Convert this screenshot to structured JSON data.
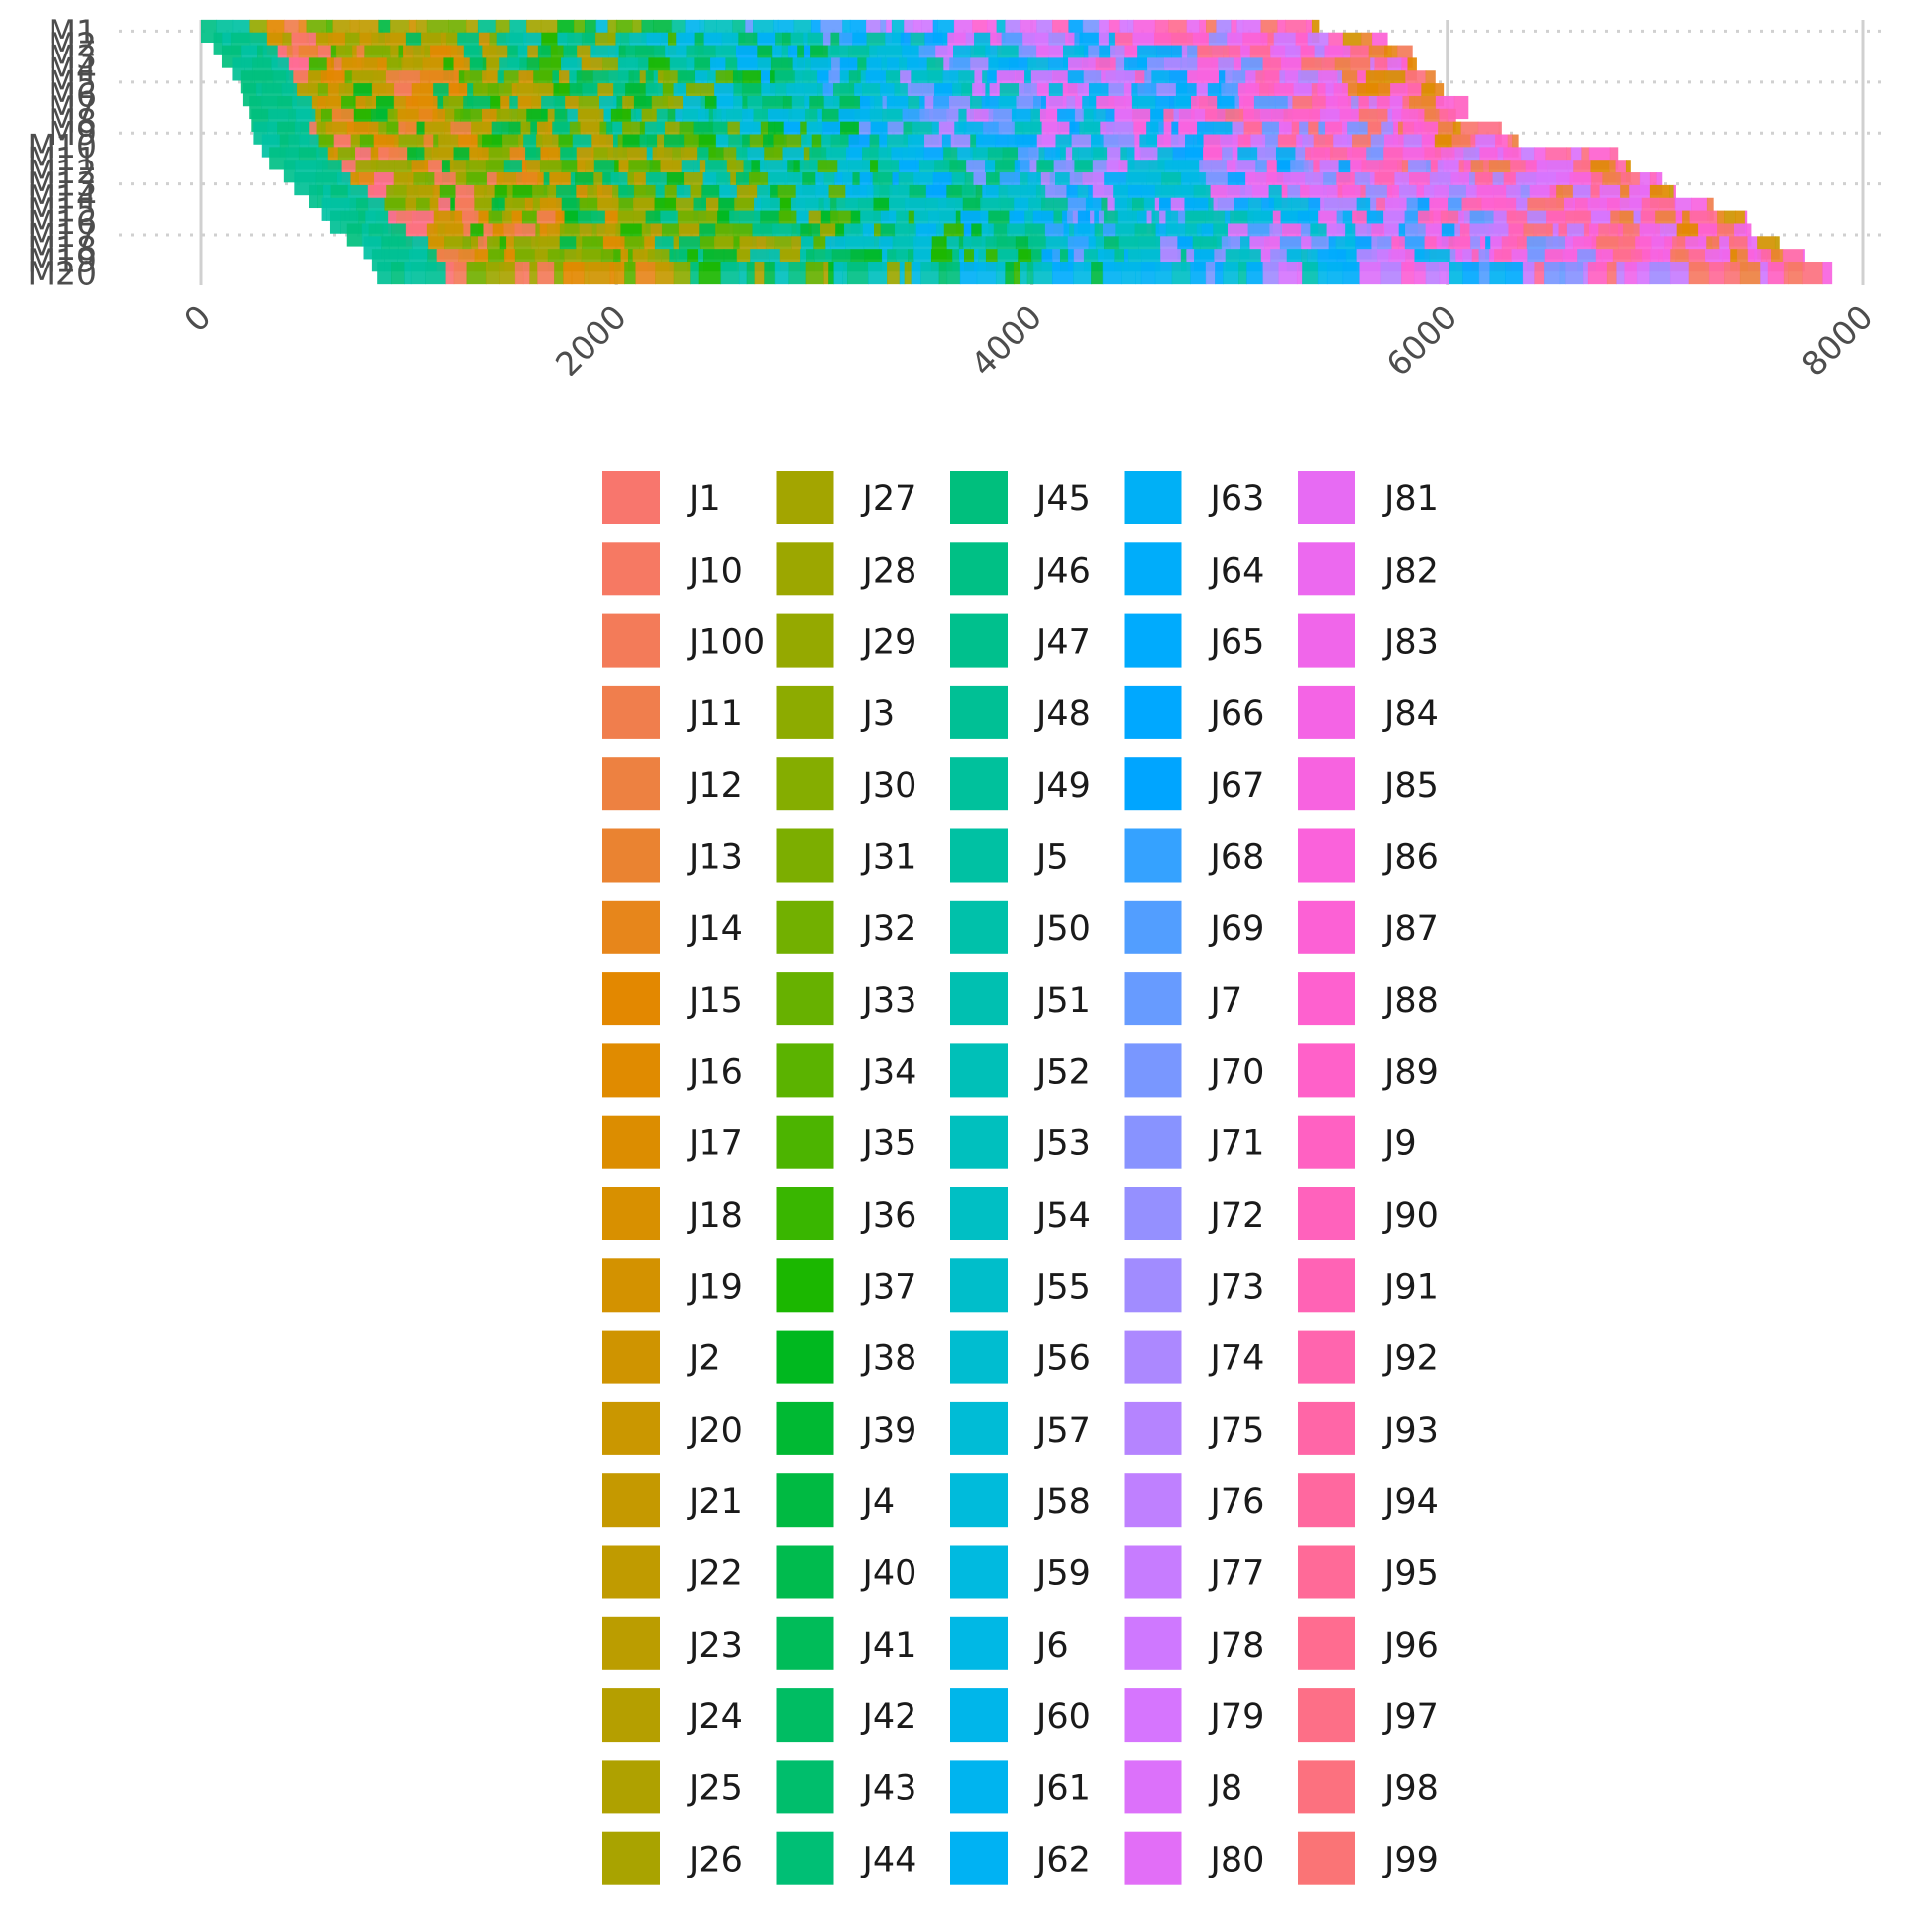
{
  "chart_data": {
    "type": "gantt",
    "title": "",
    "xlabel": "",
    "ylabel": "",
    "xlim": [
      0,
      8000
    ],
    "x_ticks": [
      0,
      2000,
      4000,
      6000,
      8000
    ],
    "x_tick_labels": [
      "0",
      "2000",
      "4000",
      "6000",
      "8000"
    ],
    "machines": [
      "M1",
      "M2",
      "M3",
      "M4",
      "M5",
      "M6",
      "M7",
      "M8",
      "M9",
      "M10",
      "M11",
      "M12",
      "M13",
      "M14",
      "M15",
      "M16",
      "M17",
      "M18",
      "M19",
      "M20"
    ],
    "machine_start_times": [
      0,
      60,
      100,
      150,
      190,
      200,
      230,
      240,
      250,
      290,
      330,
      400,
      450,
      520,
      580,
      620,
      700,
      780,
      820,
      850
    ],
    "machine_finish_times": [
      5380,
      5710,
      5830,
      5850,
      5940,
      5980,
      6100,
      6040,
      6260,
      6340,
      6820,
      6880,
      7030,
      7100,
      7280,
      7440,
      7460,
      7600,
      7720,
      7850
    ],
    "jobs": [
      "J1",
      "J10",
      "J100",
      "J11",
      "J12",
      "J13",
      "J14",
      "J15",
      "J16",
      "J17",
      "J18",
      "J19",
      "J2",
      "J20",
      "J21",
      "J22",
      "J23",
      "J24",
      "J25",
      "J26",
      "J27",
      "J28",
      "J29",
      "J3",
      "J30",
      "J31",
      "J32",
      "J33",
      "J34",
      "J35",
      "J36",
      "J37",
      "J38",
      "J39",
      "J4",
      "J40",
      "J41",
      "J42",
      "J43",
      "J44",
      "J45",
      "J46",
      "J47",
      "J48",
      "J49",
      "J5",
      "J50",
      "J51",
      "J52",
      "J53",
      "J54",
      "J55",
      "J56",
      "J57",
      "J58",
      "J59",
      "J6",
      "J60",
      "J61",
      "J62",
      "J63",
      "J64",
      "J65",
      "J66",
      "J67",
      "J68",
      "J69",
      "J7",
      "J70",
      "J71",
      "J72",
      "J73",
      "J74",
      "J75",
      "J76",
      "J77",
      "J78",
      "J79",
      "J8",
      "J80",
      "J81",
      "J82",
      "J83",
      "J84",
      "J85",
      "J86",
      "J87",
      "J88",
      "J89",
      "J9",
      "J90",
      "J91",
      "J92",
      "J93",
      "J94",
      "J95",
      "J96",
      "J97",
      "J98",
      "J99"
    ],
    "colors": {
      "hue_start_deg": 15,
      "hue_end_deg": 375,
      "chroma": 100,
      "luminance": 65
    },
    "grid": true,
    "legend_position": "bottom",
    "legend_columns": 5,
    "legend_rows": 20
  }
}
